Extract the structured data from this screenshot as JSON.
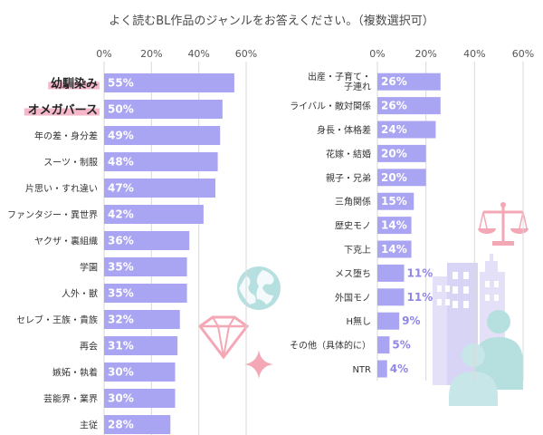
{
  "chart_data": [
    {
      "type": "bar",
      "orientation": "horizontal",
      "title": "よく読むBL作品のジャンルをお答えください。（複数選択可）",
      "xlim": [
        0,
        60
      ],
      "ticks": [
        "0%",
        "20%",
        "40%",
        "60%"
      ],
      "tick_values": [
        0,
        20,
        40,
        60
      ],
      "bar_color": "#aaa5f2",
      "highlight_color": "#f5b7c9",
      "categories": [
        "幼馴染み",
        "オメガバース",
        "年の差・身分差",
        "スーツ・制服",
        "片思い・すれ違い",
        "ファンタジー・異世界",
        "ヤクザ・裏組織",
        "学園",
        "人外・獣",
        "セレブ・王族・貴族",
        "再会",
        "嫉妬・執着",
        "芸能界・業界",
        "主従"
      ],
      "values": [
        55,
        50,
        49,
        48,
        47,
        42,
        36,
        35,
        35,
        32,
        31,
        30,
        30,
        28
      ],
      "value_labels": [
        "55%",
        "50%",
        "49%",
        "48%",
        "47%",
        "42%",
        "36%",
        "35%",
        "35%",
        "32%",
        "31%",
        "30%",
        "30%",
        "28%"
      ],
      "highlighted": [
        "幼馴染み",
        "オメガバース"
      ]
    },
    {
      "type": "bar",
      "orientation": "horizontal",
      "xlim": [
        0,
        60
      ],
      "ticks": [
        "0%",
        "20%",
        "40%",
        "60%"
      ],
      "tick_values": [
        0,
        20,
        40,
        60
      ],
      "bar_color": "#aaa5f2",
      "categories": [
        "出産・子育て・子連れ",
        "ライバル・敵対関係",
        "身長・体格差",
        "花嫁・結婚",
        "親子・兄弟",
        "三角関係",
        "歴史モノ",
        "下克上",
        "メス堕ち",
        "外国モノ",
        "H無し",
        "その他（具体的に）",
        "NTR"
      ],
      "category_lines": [
        [
          "出産・子育て・",
          "子連れ"
        ],
        [
          "ライバル・敵対関係"
        ],
        [
          "身長・体格差"
        ],
        [
          "花嫁・結婚"
        ],
        [
          "親子・兄弟"
        ],
        [
          "三角関係"
        ],
        [
          "歴史モノ"
        ],
        [
          "下克上"
        ],
        [
          "メス堕ち"
        ],
        [
          "外国モノ"
        ],
        [
          "H無し"
        ],
        [
          "その他（具体的に）"
        ],
        [
          "NTR"
        ]
      ],
      "values": [
        26,
        26,
        24,
        20,
        20,
        15,
        14,
        14,
        11,
        11,
        9,
        5,
        4
      ],
      "value_labels": [
        "26%",
        "26%",
        "24%",
        "20%",
        "20%",
        "15%",
        "14%",
        "14%",
        "11%",
        "11%",
        "9%",
        "5%",
        "4%"
      ]
    }
  ],
  "decorations": [
    "globe-icon",
    "diamond-icon",
    "sparkle-icon",
    "scales-icon",
    "buildings-icon",
    "people-icon"
  ],
  "decoration_colors": {
    "globe": "#b6dfe0",
    "diamond": "#f4a7b4",
    "sparkle": "#f4a7b4",
    "scales": "#f4a7b4",
    "buildings": "#e3e0f8",
    "people": "#b6dfe0"
  }
}
